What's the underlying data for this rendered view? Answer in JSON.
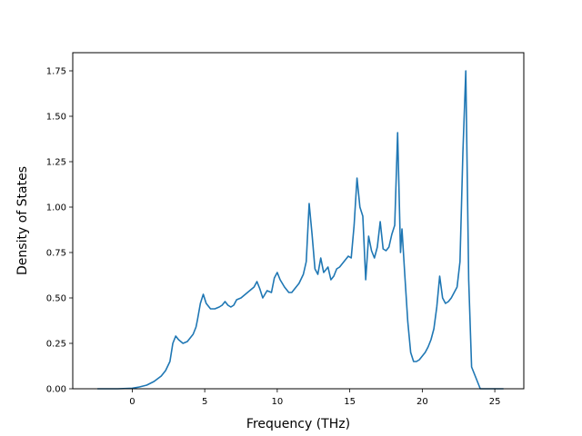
{
  "chart_data": {
    "type": "line",
    "title": "",
    "xlabel": "Frequency (THz)",
    "ylabel": "Density of States",
    "xlim": [
      -4.1,
      27.0
    ],
    "ylim": [
      0.0,
      1.85
    ],
    "xticks": [
      0,
      5,
      10,
      15,
      20,
      25
    ],
    "xtick_labels": [
      "0",
      "5",
      "10",
      "15",
      "20",
      "25"
    ],
    "yticks": [
      0.0,
      0.25,
      0.5,
      0.75,
      1.0,
      1.25,
      1.5,
      1.75
    ],
    "ytick_labels": [
      "0.00",
      "0.25",
      "0.50",
      "0.75",
      "1.00",
      "1.25",
      "1.50",
      "1.75"
    ],
    "grid": false,
    "series": [
      {
        "color": "#1f77b4",
        "x": [
          -2.4,
          -1.0,
          0.0,
          0.5,
          1.0,
          1.5,
          2.0,
          2.3,
          2.6,
          2.8,
          3.0,
          3.2,
          3.5,
          3.8,
          4.0,
          4.2,
          4.4,
          4.5,
          4.7,
          4.9,
          5.1,
          5.4,
          5.7,
          6.0,
          6.2,
          6.4,
          6.6,
          6.8,
          7.0,
          7.2,
          7.5,
          7.8,
          8.1,
          8.4,
          8.6,
          8.8,
          9.0,
          9.3,
          9.6,
          9.8,
          10.0,
          10.2,
          10.5,
          10.8,
          11.0,
          11.2,
          11.5,
          11.8,
          12.0,
          12.2,
          12.4,
          12.6,
          12.8,
          13.0,
          13.2,
          13.5,
          13.7,
          13.9,
          14.1,
          14.3,
          14.5,
          14.7,
          14.9,
          15.1,
          15.3,
          15.5,
          15.7,
          15.9,
          16.1,
          16.3,
          16.5,
          16.7,
          16.9,
          17.1,
          17.3,
          17.5,
          17.7,
          17.9,
          18.1,
          18.3,
          18.5,
          18.6,
          18.7,
          18.8,
          19.0,
          19.2,
          19.4,
          19.6,
          19.8,
          20.0,
          20.2,
          20.4,
          20.6,
          20.8,
          21.0,
          21.2,
          21.4,
          21.6,
          21.8,
          22.0,
          22.2,
          22.4,
          22.6,
          22.8,
          23.0,
          23.2,
          23.4,
          24.0,
          25.6
        ],
        "y": [
          0.0,
          0.0,
          0.003,
          0.01,
          0.02,
          0.04,
          0.07,
          0.1,
          0.15,
          0.25,
          0.29,
          0.27,
          0.25,
          0.26,
          0.28,
          0.3,
          0.34,
          0.38,
          0.47,
          0.52,
          0.47,
          0.44,
          0.44,
          0.45,
          0.46,
          0.48,
          0.46,
          0.45,
          0.46,
          0.49,
          0.5,
          0.52,
          0.54,
          0.56,
          0.59,
          0.55,
          0.5,
          0.54,
          0.53,
          0.61,
          0.64,
          0.6,
          0.56,
          0.53,
          0.53,
          0.55,
          0.58,
          0.63,
          0.7,
          1.02,
          0.85,
          0.66,
          0.63,
          0.72,
          0.64,
          0.67,
          0.6,
          0.62,
          0.66,
          0.67,
          0.69,
          0.71,
          0.73,
          0.72,
          0.9,
          1.16,
          1.0,
          0.95,
          0.6,
          0.84,
          0.76,
          0.72,
          0.78,
          0.92,
          0.77,
          0.76,
          0.78,
          0.85,
          0.9,
          1.41,
          0.75,
          0.88,
          0.75,
          0.62,
          0.37,
          0.2,
          0.15,
          0.15,
          0.16,
          0.18,
          0.2,
          0.23,
          0.27,
          0.33,
          0.45,
          0.62,
          0.5,
          0.47,
          0.48,
          0.5,
          0.53,
          0.56,
          0.7,
          1.3,
          1.75,
          0.6,
          0.12,
          0.0,
          0.0
        ]
      }
    ]
  }
}
